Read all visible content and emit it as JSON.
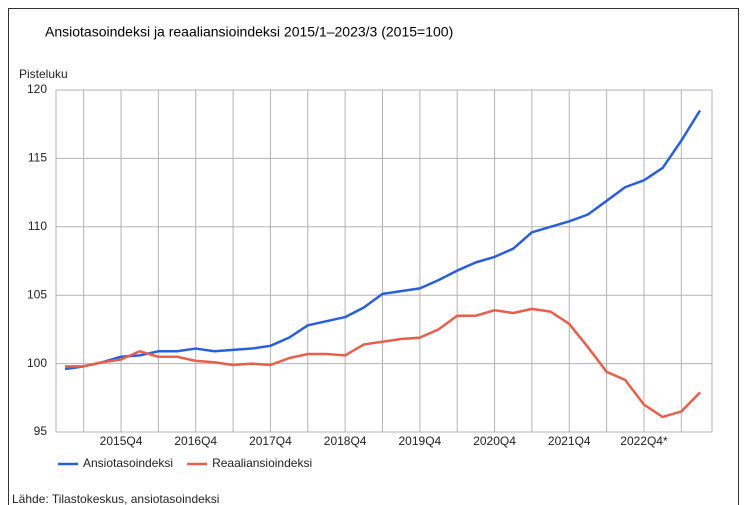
{
  "chart_data": {
    "type": "line",
    "title": "Ansiotasoindeksi ja reaaliansioindeksi 2015/1–2023/3 (2015=100)",
    "y_label": "Pisteluku",
    "source": "Lähde: Tilastokeskus, ansiotasoindeksi",
    "categories": [
      null,
      null,
      null,
      "2015Q4",
      null,
      null,
      null,
      "2016Q4",
      null,
      null,
      null,
      "2017Q4",
      null,
      null,
      null,
      "2018Q4",
      null,
      null,
      null,
      "2019Q4",
      null,
      null,
      null,
      "2020Q4",
      null,
      null,
      null,
      "2021Q4",
      null,
      null,
      null,
      "2022Q4*",
      null,
      null,
      null
    ],
    "series": [
      {
        "name": "Ansiotasoindeksi",
        "color": "#2a5fdc",
        "values": [
          99.6,
          99.8,
          100.1,
          100.5,
          100.6,
          100.9,
          100.9,
          101.1,
          100.9,
          101.0,
          101.1,
          101.3,
          101.9,
          102.8,
          103.1,
          103.4,
          104.1,
          105.1,
          105.3,
          105.5,
          106.1,
          106.8,
          107.4,
          107.8,
          108.4,
          109.6,
          110.0,
          110.4,
          110.9,
          111.9,
          112.9,
          113.4,
          114.3,
          116.3,
          118.5
        ]
      },
      {
        "name": "Reaaliansioindeksi",
        "color": "#e8604c",
        "values": [
          99.8,
          99.8,
          100.1,
          100.3,
          100.9,
          100.5,
          100.5,
          100.2,
          100.1,
          99.9,
          100.0,
          99.9,
          100.4,
          100.7,
          100.7,
          100.6,
          101.4,
          101.6,
          101.8,
          101.9,
          102.5,
          103.5,
          103.5,
          103.9,
          103.7,
          104.0,
          103.8,
          102.9,
          101.2,
          99.4,
          98.8,
          97.0,
          96.1,
          96.5,
          97.9
        ]
      }
    ],
    "ylim": [
      95,
      120
    ],
    "yticks": [
      95,
      100,
      105,
      110,
      115,
      120
    ],
    "grid": true
  }
}
